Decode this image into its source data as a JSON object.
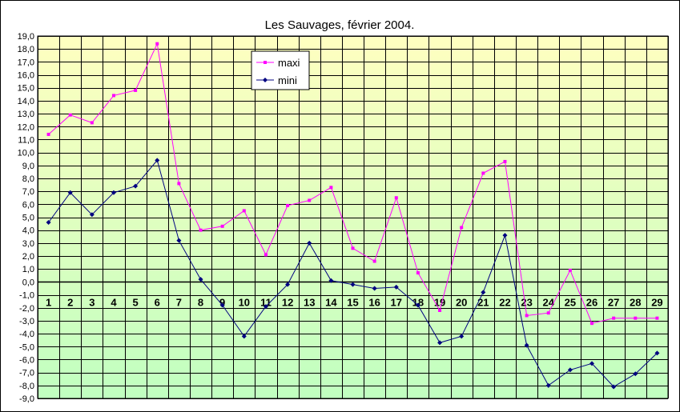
{
  "chart_data": {
    "type": "line",
    "title": "Les Sauvages, février 2004.",
    "xlabel": "",
    "ylabel": "",
    "x": [
      1,
      2,
      3,
      4,
      5,
      6,
      7,
      8,
      9,
      10,
      11,
      12,
      13,
      14,
      15,
      16,
      17,
      18,
      19,
      20,
      21,
      22,
      23,
      24,
      25,
      26,
      27,
      28,
      29
    ],
    "x_tick_labels": [
      "1",
      "2",
      "3",
      "4",
      "5",
      "6",
      "7",
      "8",
      "9",
      "10",
      "11",
      "12",
      "13",
      "14",
      "15",
      "16",
      "17",
      "18",
      "19",
      "20",
      "21",
      "22",
      "23",
      "24",
      "25",
      "26",
      "27",
      "28",
      "29"
    ],
    "ylim": [
      -9,
      19
    ],
    "y_tick_step": 1,
    "y_tick_labels": [
      "19,0",
      "18,0",
      "17,0",
      "16,0",
      "15,0",
      "14,0",
      "13,0",
      "12,0",
      "11,0",
      "10,0",
      "9,0",
      "8,0",
      "7,0",
      "6,0",
      "5,0",
      "4,0",
      "3,0",
      "2,0",
      "1,0",
      "0,0",
      "-1,0",
      "-2,0",
      "-3,0",
      "-4,0",
      "-5,0",
      "-6,0",
      "-7,0",
      "-8,0",
      "-9,0"
    ],
    "grid": true,
    "legend_position": "top-center",
    "series": [
      {
        "name": "maxi",
        "color": "#ff00ff",
        "marker": "square",
        "values": [
          11.4,
          12.9,
          12.3,
          14.4,
          14.8,
          18.4,
          7.6,
          4.0,
          4.3,
          5.5,
          2.1,
          5.9,
          6.3,
          7.3,
          2.6,
          1.6,
          6.5,
          0.7,
          -2.2,
          4.2,
          8.4,
          9.3,
          -2.6,
          -2.4,
          0.9,
          -3.2,
          -2.8,
          -2.8,
          -2.8
        ]
      },
      {
        "name": "mini",
        "color": "#000080",
        "marker": "diamond",
        "values": [
          4.6,
          6.9,
          5.2,
          6.9,
          7.4,
          9.4,
          3.2,
          0.2,
          -1.8,
          -4.2,
          -1.9,
          -0.2,
          3.0,
          0.1,
          -0.2,
          -0.5,
          -0.4,
          -1.8,
          -4.7,
          -4.2,
          -0.8,
          3.6,
          -4.9,
          -8.0,
          -6.8,
          -6.3,
          -8.1,
          -7.1,
          -5.5
        ]
      }
    ],
    "plot_gradient_top": "#ffffc0",
    "plot_gradient_bottom": "#c0ffc0"
  }
}
